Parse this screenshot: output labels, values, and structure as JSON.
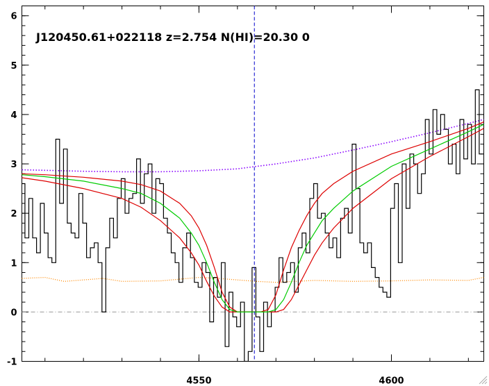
{
  "chart_data": {
    "type": "line",
    "title": "J120450.61+022118 z=2.754 N(HI)=20.30 0",
    "xlabel": "",
    "ylabel": "",
    "xlim": [
      4504,
      4624
    ],
    "ylim": [
      -1,
      6.2
    ],
    "x_ticks": [
      {
        "value": 4550,
        "label": "4550"
      },
      {
        "value": 4600,
        "label": "4600"
      }
    ],
    "y_ticks": [
      {
        "value": -1,
        "label": "-1"
      },
      {
        "value": 0,
        "label": "0"
      },
      {
        "value": 1,
        "label": "1"
      },
      {
        "value": 2,
        "label": "2"
      },
      {
        "value": 3,
        "label": "3"
      },
      {
        "value": 4,
        "label": "4"
      },
      {
        "value": 5,
        "label": "5"
      },
      {
        "value": 6,
        "label": "6"
      }
    ],
    "reference_lines": {
      "zero_level": 0,
      "line_center": 4564.4
    },
    "grid": false,
    "legend": "none",
    "colors": {
      "flux": "#000000",
      "continuum": "#8800ff",
      "error": "#ff8800",
      "fit": "#00cc00",
      "fit_bounds": "#dd0000",
      "zero_line": "#999999",
      "center_line": "#0000cc"
    },
    "series": [
      {
        "role": "flux",
        "style": "histogram",
        "x": [
          4504.3,
          4505.3,
          4506.3,
          4507.3,
          4508.3,
          4509.3,
          4510.3,
          4511.3,
          4512.3,
          4513.3,
          4514.3,
          4515.3,
          4516.3,
          4517.3,
          4518.3,
          4519.3,
          4520.3,
          4521.3,
          4522.3,
          4523.3,
          4524.3,
          4525.3,
          4526.3,
          4527.3,
          4528.3,
          4529.3,
          4530.3,
          4531.3,
          4532.3,
          4533.3,
          4534.3,
          4535.3,
          4536.3,
          4537.3,
          4538.3,
          4539.3,
          4540.3,
          4541.3,
          4542.3,
          4543.3,
          4544.3,
          4545.3,
          4546.3,
          4547.3,
          4548.3,
          4549.3,
          4550.3,
          4551.3,
          4552.3,
          4553.3,
          4554.3,
          4555.3,
          4556.3,
          4557.3,
          4558.3,
          4559.3,
          4560.3,
          4561.3,
          4562.3,
          4563.3,
          4564.3,
          4565.3,
          4566.3,
          4567.3,
          4568.3,
          4569.3,
          4570.3,
          4571.3,
          4572.3,
          4573.3,
          4574.3,
          4575.3,
          4576.3,
          4577.3,
          4578.3,
          4579.3,
          4580.3,
          4581.3,
          4582.3,
          4583.3,
          4584.3,
          4585.3,
          4586.3,
          4587.3,
          4588.3,
          4589.3,
          4590.3,
          4591.3,
          4592.3,
          4593.3,
          4594.3,
          4595.3,
          4596.3,
          4597.3,
          4598.3,
          4599.3,
          4600.3,
          4601.3,
          4602.3,
          4603.3,
          4604.3,
          4605.3,
          4606.3,
          4607.3,
          4608.3,
          4609.3,
          4610.3,
          4611.3,
          4612.3,
          4613.3,
          4614.3,
          4615.3,
          4616.3,
          4617.3,
          4618.3,
          4619.3,
          4620.3,
          4621.3,
          4622.3,
          4623.3
        ],
        "y": [
          2.6,
          1.5,
          2.3,
          1.5,
          1.2,
          2.2,
          1.6,
          1.1,
          1.0,
          3.5,
          2.2,
          3.3,
          1.8,
          1.6,
          1.5,
          2.4,
          1.8,
          1.1,
          1.3,
          1.4,
          1.0,
          0.0,
          1.3,
          1.9,
          1.5,
          2.3,
          2.7,
          2.0,
          2.3,
          2.4,
          3.1,
          2.2,
          2.8,
          3.0,
          2.0,
          2.7,
          2.6,
          1.9,
          1.6,
          1.2,
          1.0,
          0.6,
          1.3,
          1.6,
          1.1,
          0.6,
          0.5,
          1.0,
          0.8,
          -0.2,
          0.7,
          0.3,
          1.0,
          -0.7,
          0.4,
          -0.1,
          -0.3,
          0.2,
          -1.0,
          -0.8,
          0.9,
          -0.1,
          -0.8,
          0.2,
          -0.3,
          0.0,
          0.5,
          1.1,
          0.6,
          0.8,
          1.0,
          0.4,
          1.3,
          1.6,
          1.2,
          2.3,
          2.6,
          1.9,
          2.0,
          1.6,
          1.3,
          1.5,
          1.1,
          1.9,
          2.1,
          1.6,
          3.4,
          2.5,
          1.4,
          1.2,
          1.4,
          0.9,
          0.7,
          0.5,
          0.4,
          0.3,
          2.1,
          2.6,
          1.0,
          3.0,
          2.1,
          3.2,
          3.0,
          2.4,
          2.8,
          3.9,
          3.2,
          4.1,
          3.6,
          4.0,
          3.7,
          3.0,
          3.4,
          2.8,
          3.9,
          3.1,
          3.8,
          3.0,
          4.5,
          3.2
        ]
      },
      {
        "role": "continuum",
        "style": "dotted",
        "x": [
          4504,
          4510,
          4520,
          4530,
          4540,
          4550,
          4560,
          4565,
          4570,
          4580,
          4590,
          4600,
          4610,
          4620,
          4624
        ],
        "y": [
          2.88,
          2.87,
          2.85,
          2.84,
          2.84,
          2.86,
          2.9,
          2.95,
          3.0,
          3.12,
          3.28,
          3.45,
          3.63,
          3.82,
          3.9
        ]
      },
      {
        "role": "error",
        "style": "dotted",
        "x": [
          4504,
          4510,
          4515,
          4520,
          4525,
          4530,
          4540,
          4550,
          4555,
          4560,
          4565,
          4570,
          4575,
          4580,
          4590,
          4600,
          4610,
          4620,
          4624
        ],
        "y": [
          0.68,
          0.7,
          0.62,
          0.65,
          0.68,
          0.62,
          0.63,
          0.7,
          0.68,
          0.65,
          0.62,
          0.6,
          0.62,
          0.64,
          0.62,
          0.63,
          0.65,
          0.64,
          0.7
        ]
      },
      {
        "role": "fit",
        "style": "solid",
        "x": [
          4504,
          4510,
          4520,
          4530,
          4535,
          4540,
          4545,
          4548,
          4550,
          4552,
          4554,
          4556,
          4558,
          4560,
          4562,
          4564,
          4566,
          4568,
          4570,
          4572,
          4574,
          4576,
          4578,
          4580,
          4582,
          4585,
          4590,
          4600,
          4610,
          4620,
          4624
        ],
        "y": [
          2.78,
          2.74,
          2.65,
          2.5,
          2.4,
          2.2,
          1.9,
          1.6,
          1.35,
          1.0,
          0.6,
          0.25,
          0.05,
          0.0,
          0.0,
          0.0,
          0.0,
          0.0,
          0.05,
          0.25,
          0.6,
          1.0,
          1.35,
          1.6,
          1.85,
          2.1,
          2.45,
          2.95,
          3.3,
          3.65,
          3.8
        ]
      },
      {
        "role": "fit-upper",
        "style": "solid",
        "x": [
          4504,
          4510,
          4520,
          4530,
          4535,
          4540,
          4545,
          4548,
          4550,
          4552,
          4554,
          4556,
          4558,
          4560,
          4562,
          4564,
          4566,
          4568,
          4570,
          4572,
          4574,
          4576,
          4578,
          4580,
          4582,
          4585,
          4590,
          4600,
          4610,
          4620,
          4624
        ],
        "y": [
          2.8,
          2.78,
          2.73,
          2.65,
          2.58,
          2.45,
          2.2,
          1.95,
          1.7,
          1.35,
          0.9,
          0.4,
          0.1,
          0.0,
          0.0,
          0.0,
          0.0,
          0.05,
          0.35,
          0.85,
          1.3,
          1.65,
          1.95,
          2.2,
          2.4,
          2.6,
          2.85,
          3.2,
          3.45,
          3.72,
          3.85
        ]
      },
      {
        "role": "fit-lower",
        "style": "solid",
        "x": [
          4504,
          4510,
          4520,
          4530,
          4535,
          4540,
          4545,
          4548,
          4550,
          4552,
          4554,
          4556,
          4558,
          4560,
          4562,
          4564,
          4566,
          4568,
          4570,
          4572,
          4574,
          4576,
          4578,
          4580,
          4582,
          4585,
          4590,
          4600,
          4610,
          4620,
          4624
        ],
        "y": [
          2.72,
          2.65,
          2.5,
          2.3,
          2.12,
          1.85,
          1.5,
          1.2,
          0.95,
          0.62,
          0.32,
          0.1,
          0.0,
          0.0,
          0.0,
          0.0,
          0.0,
          0.0,
          0.0,
          0.05,
          0.25,
          0.55,
          0.85,
          1.15,
          1.4,
          1.7,
          2.1,
          2.7,
          3.15,
          3.55,
          3.72
        ]
      }
    ]
  }
}
